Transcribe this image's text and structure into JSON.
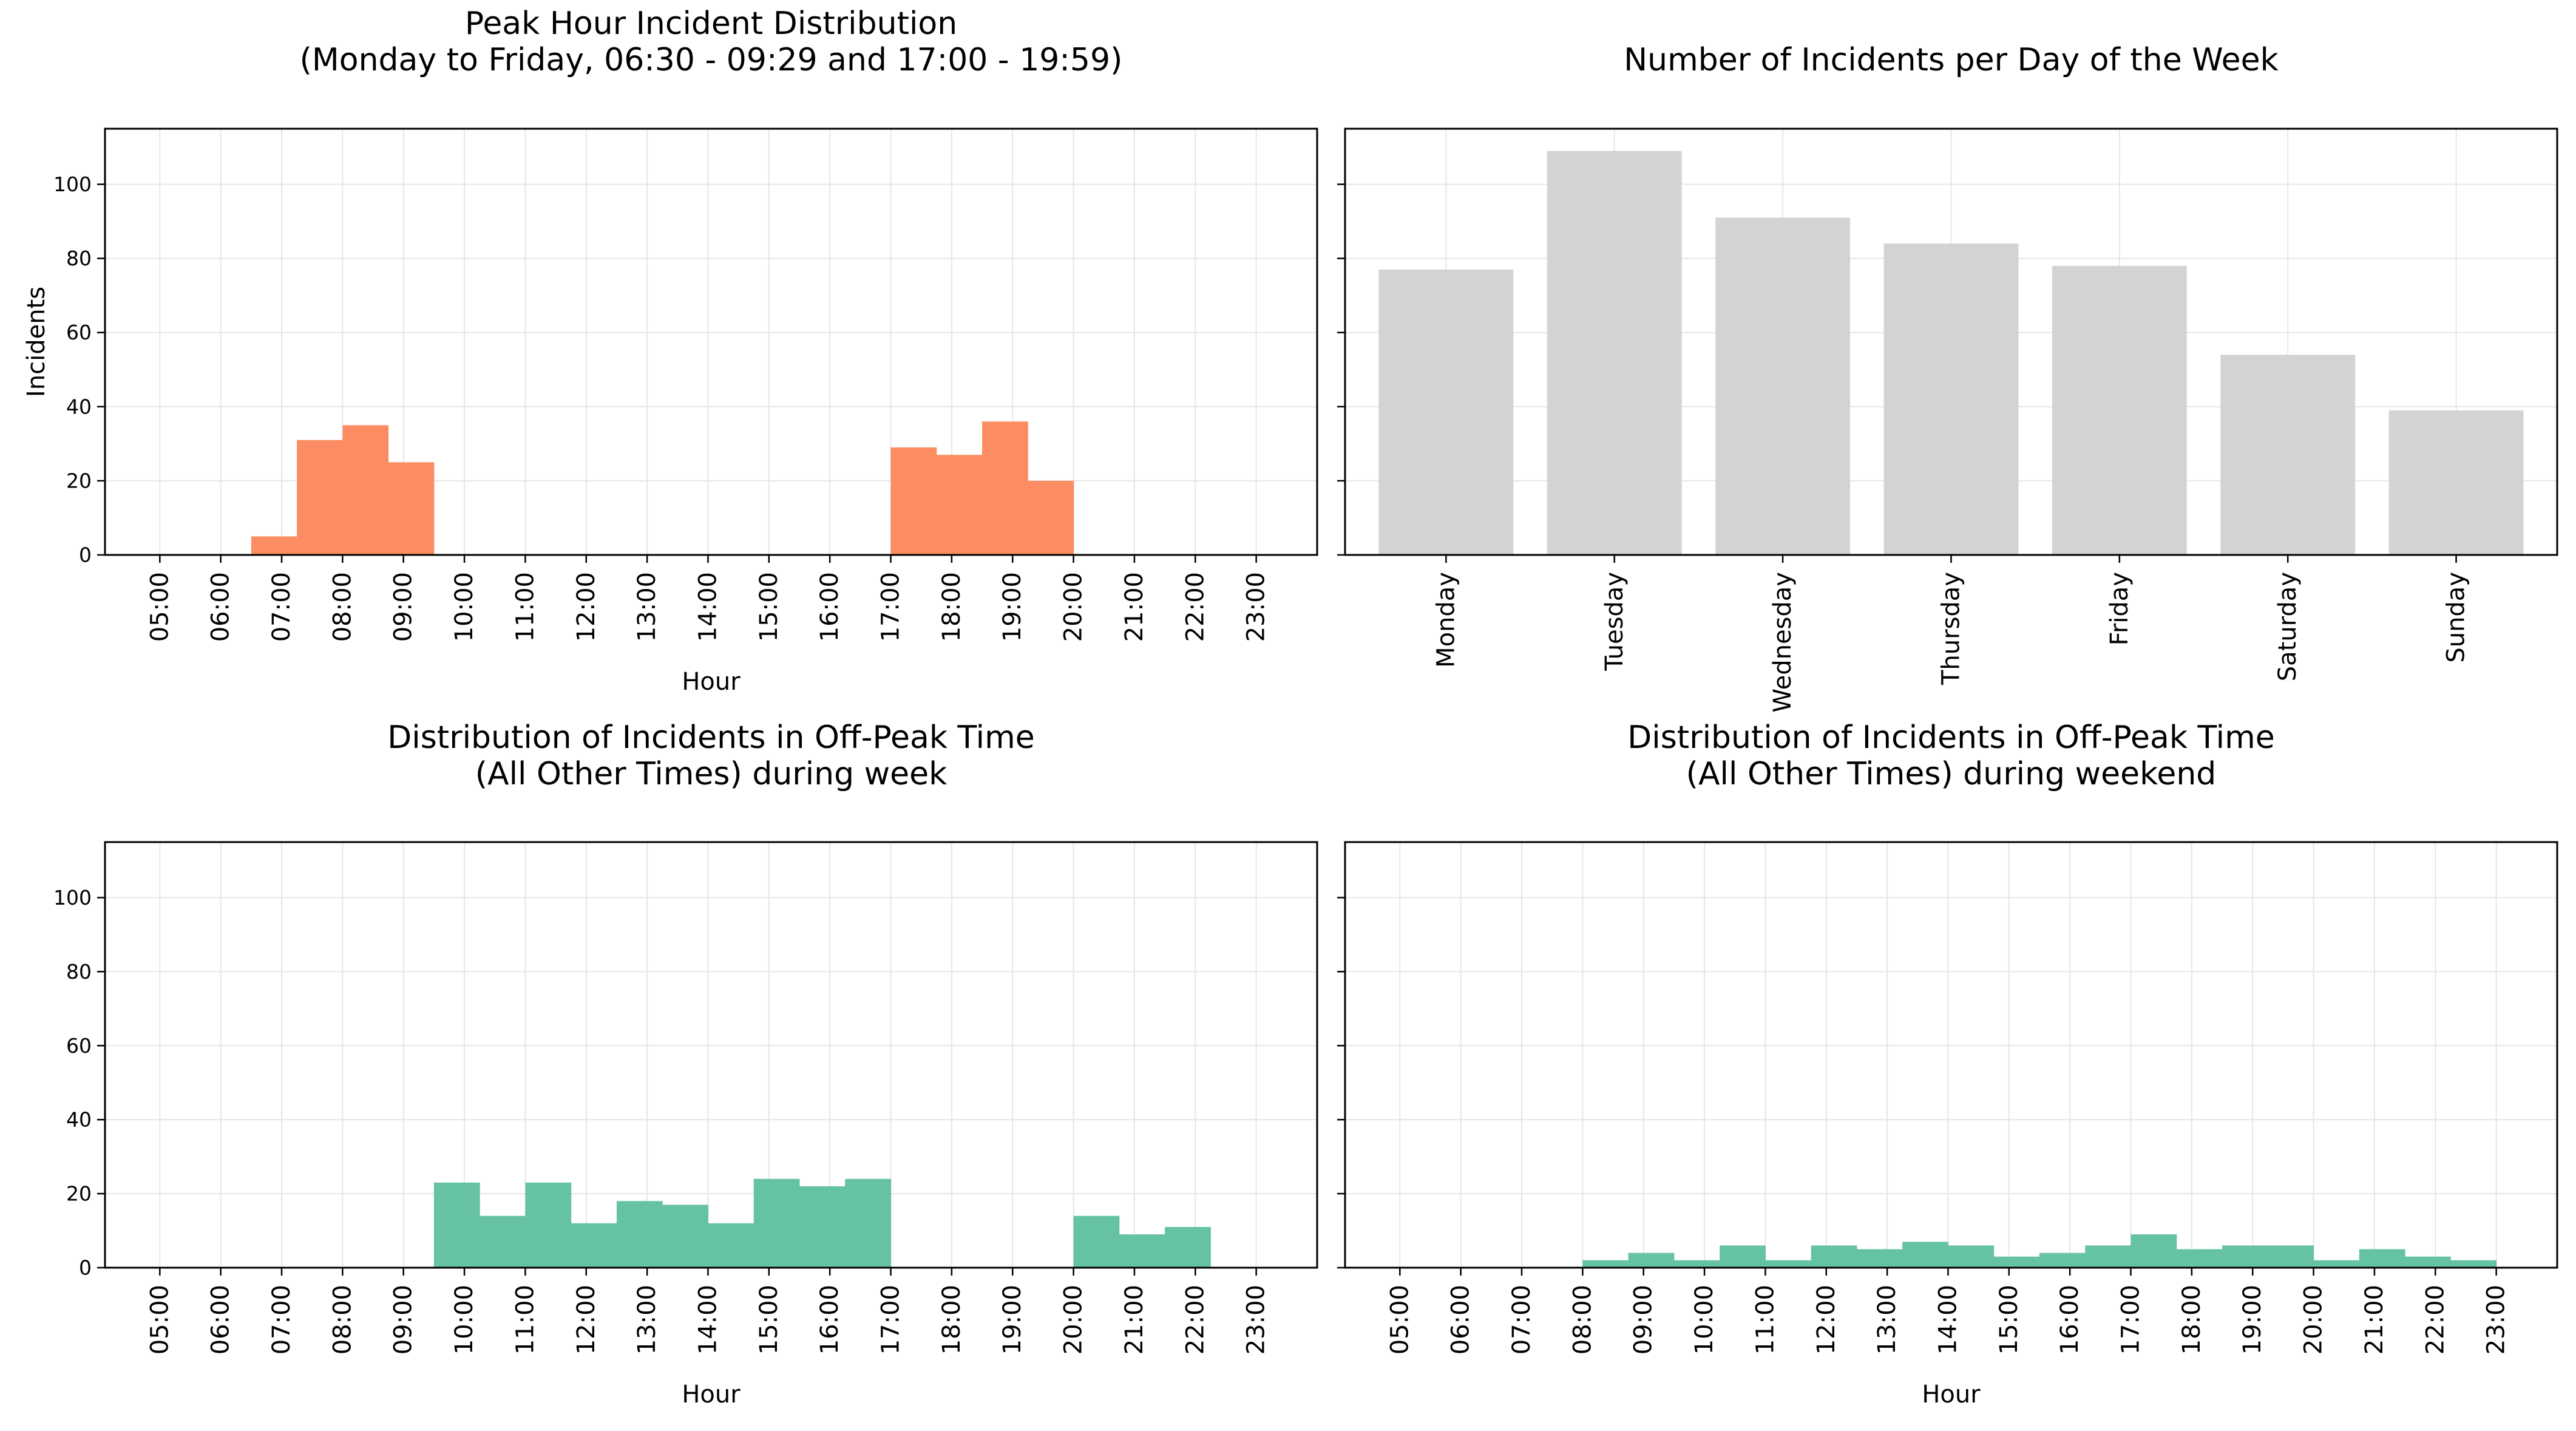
{
  "chart_data": [
    {
      "type": "bar",
      "id": "peak",
      "title_lines": [
        "Peak Hour Incident Distribution",
        "(Monday to Friday, 06:30 - 09:29 and 17:00 - 19:59)"
      ],
      "xlabel": "Hour",
      "ylabel": "Incidents",
      "ylim": [
        0,
        115
      ],
      "yticks": [
        0,
        20,
        40,
        60,
        80,
        100
      ],
      "xlim": [
        4.1,
        24.0
      ],
      "xticks": [
        5,
        6,
        7,
        8,
        9,
        10,
        11,
        12,
        13,
        14,
        15,
        16,
        17,
        18,
        19,
        20,
        21,
        22,
        23
      ],
      "xtick_labels": [
        "05:00",
        "06:00",
        "07:00",
        "08:00",
        "09:00",
        "10:00",
        "11:00",
        "12:00",
        "13:00",
        "14:00",
        "15:00",
        "16:00",
        "17:00",
        "18:00",
        "19:00",
        "20:00",
        "21:00",
        "22:00",
        "23:00"
      ],
      "bin_width": 0.75,
      "bin_starts": [
        6.5,
        7.25,
        8.0,
        8.75,
        17.0,
        17.75,
        18.5,
        19.25
      ],
      "values": [
        5,
        31,
        35,
        25,
        29,
        27,
        36,
        20
      ],
      "color": "#FC8D62",
      "grid": true
    },
    {
      "type": "bar",
      "id": "days",
      "title_lines": [
        "Number of Incidents per Day of the Week"
      ],
      "categories": [
        "Monday",
        "Tuesday",
        "Wednesday",
        "Thursday",
        "Friday",
        "Saturday",
        "Sunday"
      ],
      "values": [
        77,
        109,
        91,
        84,
        78,
        54,
        39
      ],
      "ylim": [
        0,
        115
      ],
      "yticks": [
        0,
        20,
        40,
        60,
        80,
        100
      ],
      "color": "#D3D3D3",
      "grid": true
    },
    {
      "type": "bar",
      "id": "weekday-offpeak",
      "title_lines": [
        "Distribution of Incidents in Off-Peak Time",
        "(All Other Times) during week"
      ],
      "xlabel": "Hour",
      "ylim": [
        0,
        115
      ],
      "yticks": [
        0,
        20,
        40,
        60,
        80,
        100
      ],
      "xlim": [
        4.1,
        24.0
      ],
      "xticks": [
        5,
        6,
        7,
        8,
        9,
        10,
        11,
        12,
        13,
        14,
        15,
        16,
        17,
        18,
        19,
        20,
        21,
        22,
        23
      ],
      "xtick_labels": [
        "05:00",
        "06:00",
        "07:00",
        "08:00",
        "09:00",
        "10:00",
        "11:00",
        "12:00",
        "13:00",
        "14:00",
        "15:00",
        "16:00",
        "17:00",
        "18:00",
        "19:00",
        "20:00",
        "21:00",
        "22:00",
        "23:00"
      ],
      "bin_width": 0.75,
      "bin_starts": [
        9.5,
        10.25,
        11.0,
        11.75,
        12.5,
        13.25,
        14.0,
        14.75,
        15.5,
        16.25,
        20.0,
        20.75,
        21.5
      ],
      "values": [
        23,
        14,
        23,
        12,
        18,
        17,
        12,
        24,
        22,
        24,
        14,
        9,
        11
      ],
      "color": "#66C2A5",
      "grid": true
    },
    {
      "type": "bar",
      "id": "weekend-offpeak",
      "title_lines": [
        "Distribution of Incidents in Off-Peak Time",
        "(All Other Times) during weekend"
      ],
      "xlabel": "Hour",
      "ylim": [
        0,
        115
      ],
      "yticks": [
        0,
        20,
        40,
        60,
        80,
        100
      ],
      "xlim": [
        4.1,
        24.0
      ],
      "xticks": [
        5,
        6,
        7,
        8,
        9,
        10,
        11,
        12,
        13,
        14,
        15,
        16,
        17,
        18,
        19,
        20,
        21,
        22,
        23
      ],
      "xtick_labels": [
        "05:00",
        "06:00",
        "07:00",
        "08:00",
        "09:00",
        "10:00",
        "11:00",
        "12:00",
        "13:00",
        "14:00",
        "15:00",
        "16:00",
        "17:00",
        "18:00",
        "19:00",
        "20:00",
        "21:00",
        "22:00",
        "23:00"
      ],
      "bin_width": 0.75,
      "bin_starts": [
        8.0,
        8.75,
        9.5,
        10.25,
        11.0,
        11.75,
        12.5,
        13.25,
        14.0,
        14.75,
        15.5,
        16.25,
        17.0,
        17.75,
        18.5,
        19.25,
        20.0,
        20.75,
        21.5,
        22.25
      ],
      "values": [
        2,
        4,
        2,
        6,
        2,
        6,
        5,
        7,
        6,
        3,
        4,
        6,
        9,
        5,
        6,
        6,
        2,
        5,
        3,
        2
      ],
      "color": "#66C2A5",
      "grid": true
    }
  ]
}
